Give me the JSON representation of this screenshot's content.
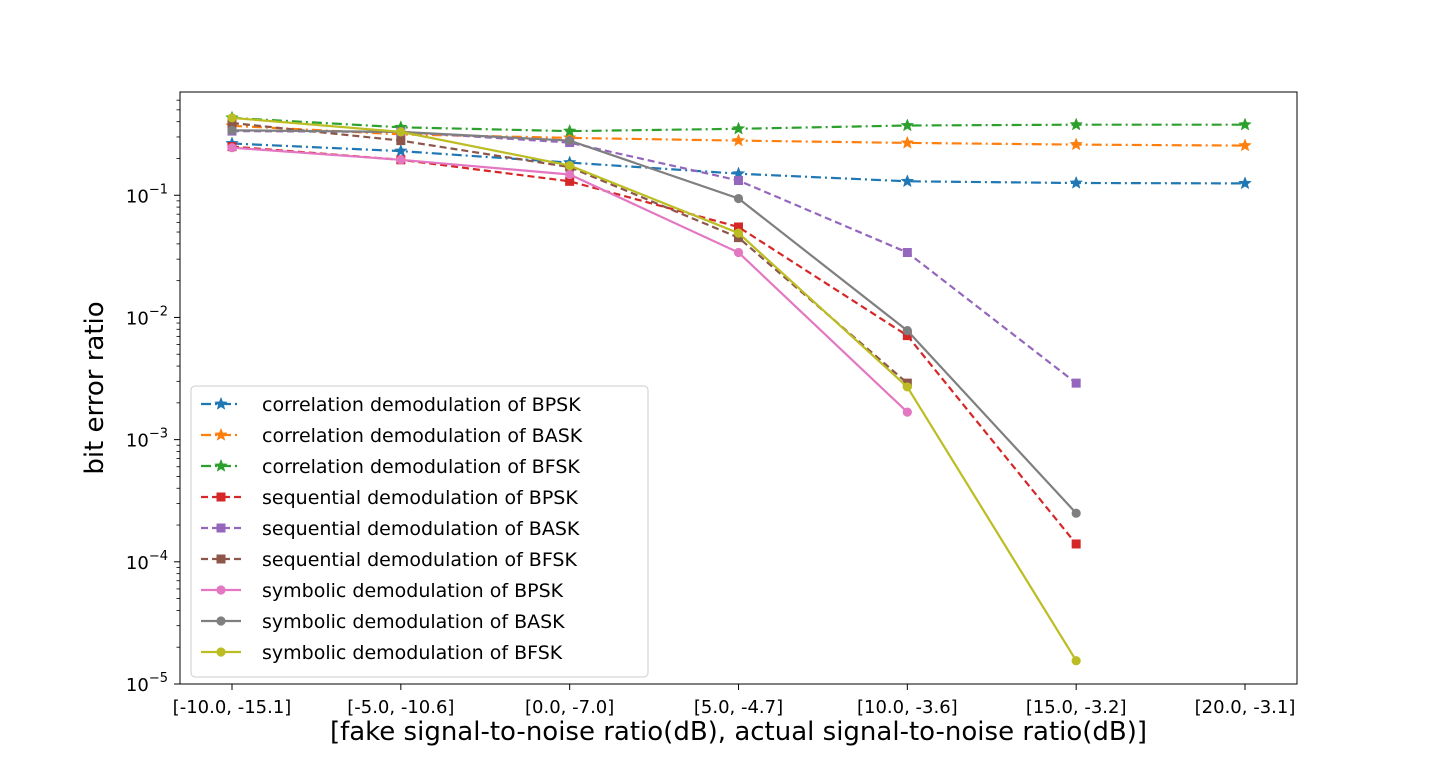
{
  "chart_data": {
    "type": "line",
    "title": "",
    "xlabel": "[fake signal-to-noise ratio(dB), actual signal-to-noise ratio(dB)]",
    "ylabel": "bit error ratio",
    "yscale": "log",
    "ylim": [
      1e-05,
      0.7
    ],
    "grid": false,
    "legend_position": "lower-left",
    "categories": [
      "[-10.0, -15.1]",
      "[-5.0, -10.6]",
      "[0.0, -7.0]",
      "[5.0, -4.7]",
      "[10.0, -3.6]",
      "[15.0, -3.2]",
      "[20.0, -3.1]"
    ],
    "y_ticks": [
      {
        "value": 1e-05,
        "base": "10",
        "exp": "−5"
      },
      {
        "value": 0.0001,
        "base": "10",
        "exp": "−4"
      },
      {
        "value": 0.001,
        "base": "10",
        "exp": "−3"
      },
      {
        "value": 0.01,
        "base": "10",
        "exp": "−2"
      },
      {
        "value": 0.1,
        "base": "10",
        "exp": "−1"
      }
    ],
    "series": [
      {
        "name": "correlation demodulation of BPSK",
        "color": "#1f77b4",
        "dash": "dashdot",
        "marker": "star",
        "values": [
          0.265,
          0.23,
          0.185,
          0.15,
          0.13,
          0.126,
          0.125
        ]
      },
      {
        "name": "correlation demodulation of BASK",
        "color": "#ff7f0e",
        "dash": "dashdot",
        "marker": "star",
        "values": [
          0.37,
          0.315,
          0.295,
          0.28,
          0.268,
          0.26,
          0.255
        ]
      },
      {
        "name": "correlation demodulation of BFSK",
        "color": "#2ca02c",
        "dash": "dashdot",
        "marker": "star",
        "values": [
          0.43,
          0.36,
          0.335,
          0.35,
          0.372,
          0.378,
          0.378
        ]
      },
      {
        "name": "sequential demodulation of BPSK",
        "color": "#d62728",
        "dash": "dashed",
        "marker": "square",
        "values": [
          0.25,
          0.195,
          0.13,
          0.055,
          0.0071,
          0.00014,
          null
        ]
      },
      {
        "name": "sequential demodulation of BASK",
        "color": "#9467bd",
        "dash": "dashed",
        "marker": "square",
        "values": [
          0.335,
          0.33,
          0.27,
          0.132,
          0.034,
          0.0029,
          null
        ]
      },
      {
        "name": "sequential demodulation of BFSK",
        "color": "#8c564b",
        "dash": "dashed",
        "marker": "square",
        "values": [
          0.39,
          0.28,
          0.17,
          0.045,
          0.0029,
          null,
          null
        ]
      },
      {
        "name": "symbolic demodulation of BPSK",
        "color": "#e377c2",
        "dash": "solid",
        "marker": "circle",
        "values": [
          0.245,
          0.195,
          0.148,
          0.034,
          0.00168,
          null,
          null
        ]
      },
      {
        "name": "symbolic demodulation of BASK",
        "color": "#7f7f7f",
        "dash": "solid",
        "marker": "circle",
        "values": [
          0.34,
          0.33,
          0.28,
          0.094,
          0.0078,
          0.00025,
          null
        ]
      },
      {
        "name": "symbolic demodulation of BFSK",
        "color": "#bcbd22",
        "dash": "solid",
        "marker": "circle",
        "values": [
          0.43,
          0.33,
          0.175,
          0.049,
          0.0027,
          1.55e-05,
          null
        ]
      }
    ]
  }
}
